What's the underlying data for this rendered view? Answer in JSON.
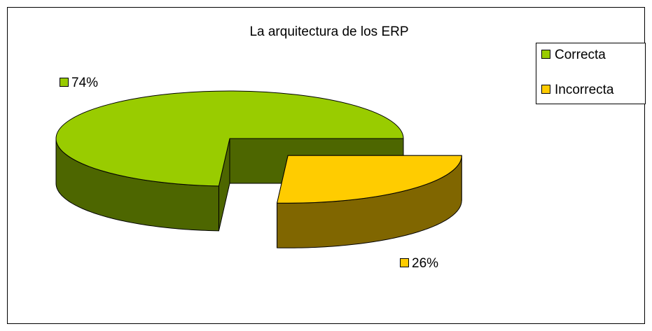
{
  "chart_data": {
    "type": "pie",
    "title": "La arquitectura de los ERP",
    "categories": [
      "Correcta",
      "Incorrecta"
    ],
    "values": [
      74,
      26
    ],
    "value_labels": [
      "74%",
      "26%"
    ],
    "colors": [
      "#99cc00",
      "#ffcc00"
    ],
    "side_colors": [
      "#4d6600",
      "#806600"
    ],
    "legend": "right"
  }
}
